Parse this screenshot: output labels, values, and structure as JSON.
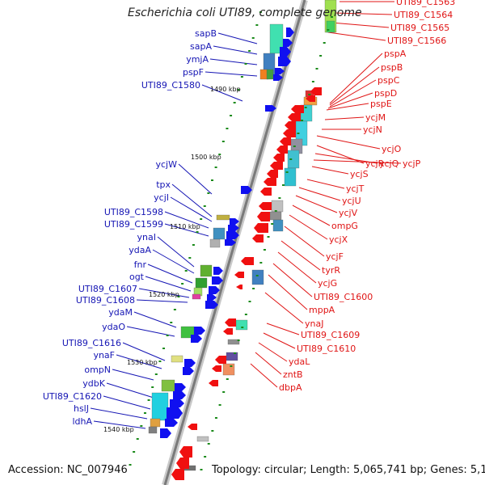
{
  "title": "Escherichia coli UTI89, complete genome",
  "footer": {
    "accession": "Accession: NC_007946",
    "topology": "Topology: circular; Length: 5,065,741 bp; Genes: 5,131"
  },
  "colors": {
    "forward_label": "#1515b4",
    "reverse_label": "#e01515",
    "forward_arrow": "#1010f0",
    "reverse_arrow": "#f01010",
    "backbone": "#8a8a8a",
    "tick": "#1a8a1a"
  },
  "kbp_ticks": [
    "1490 kbp",
    "1500 kbp",
    "1510 kbp",
    "1520 kbp",
    "1530 kbp",
    "1540 kbp"
  ],
  "forward_genes": [
    "sapB",
    "sapA",
    "ymjA",
    "pspF",
    "UTI89_C1580",
    "ycjW",
    "tpx",
    "ycjI",
    "UTI89_C1598",
    "UTI89_C1599",
    "ynaI",
    "ydaA",
    "fnr",
    "ogt",
    "UTI89_C1607",
    "UTI89_C1608",
    "ydaM",
    "ydaO",
    "UTI89_C1616",
    "ynaF",
    "ompN",
    "ydbK",
    "UTI89_C1620",
    "hslJ",
    "ldhA"
  ],
  "reverse_genes": [
    "UTI89_C1563",
    "UTI89_C1564",
    "UTI89_C1565",
    "UTI89_C1566",
    "pspA",
    "pspB",
    "pspC",
    "pspD",
    "pspE",
    "ycjM",
    "ycjN",
    "ycjO",
    "ycjR",
    "ycjQ",
    "ycjP",
    "ycjS",
    "ycjT",
    "ycjU",
    "ycjV",
    "ompG",
    "ycjX",
    "ycjF",
    "tyrR",
    "ycjG",
    "UTI89_C1600",
    "mppA",
    "ynaJ",
    "UTI89_C1609",
    "UTI89_C1610",
    "ydaL",
    "zntB",
    "dbpA"
  ]
}
